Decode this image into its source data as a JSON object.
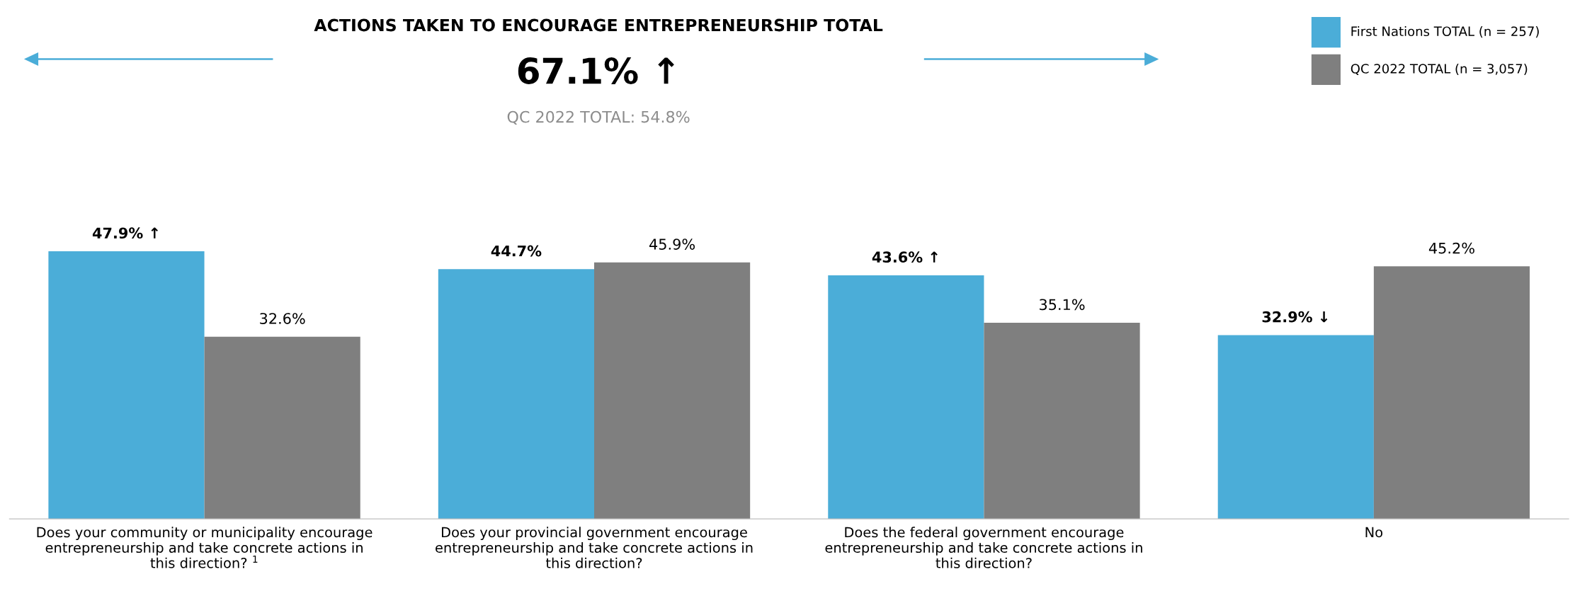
{
  "chart_data": {
    "type": "bar",
    "title": "ACTIONS TAKEN TO ENCOURAGE ENTREPRENEURSHIP TOTAL",
    "subtitle": "67.1% ↑",
    "annotations": [
      "QC 2022 TOTAL: 54.8%"
    ],
    "categories": [
      "Does your community or municipality encourage entrepreneurship and take concrete actions in this direction? $^{1}$",
      "Does your provincial government encourage entrepreneurship and take concrete actions in this direction?",
      "Does the federal government encourage entrepreneurship and take concrete actions in this direction?",
      "No"
    ],
    "series": [
      {
        "name": "First Nations TOTAL (n = 257)",
        "color": "#4badd8",
        "values": [
          47.9,
          44.7,
          43.6,
          32.9
        ],
        "value_labels": [
          "47.9% ↑",
          "44.7%",
          "43.6% ↑",
          "32.9% ↓"
        ]
      },
      {
        "name": "QC 2022 TOTAL (n = 3,057)",
        "color": "#7f7f7f",
        "values": [
          32.6,
          45.9,
          35.1,
          45.2
        ],
        "value_labels": [
          "32.6%",
          "45.9%",
          "35.1%",
          "45.2%"
        ]
      }
    ],
    "legend": "top right"
  }
}
